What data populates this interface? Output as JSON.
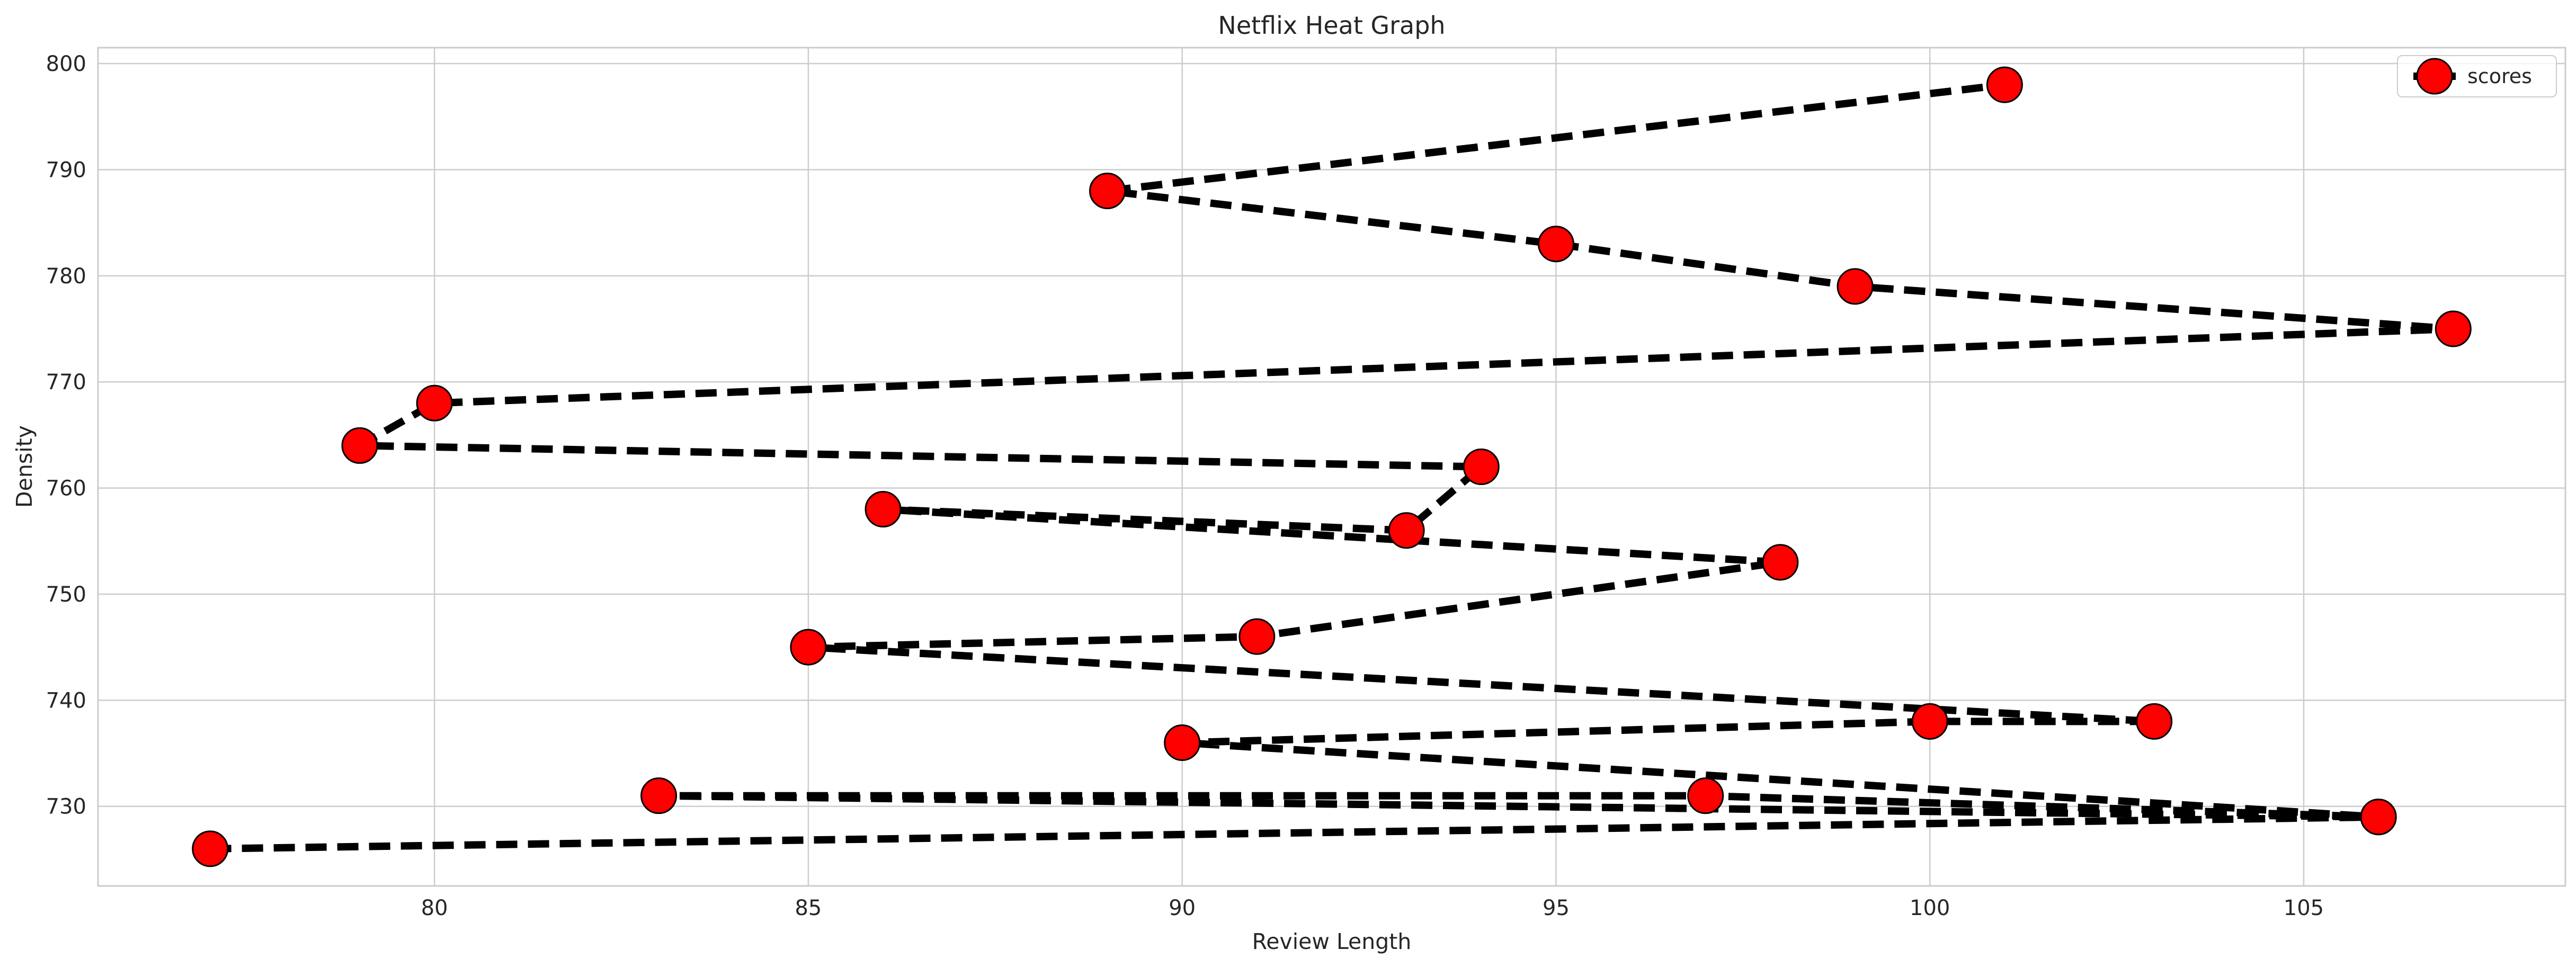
{
  "chart_data": {
    "type": "line",
    "title": "Netflix Heat Graph",
    "xlabel": "Review Length",
    "ylabel": "Density",
    "xlim": [
      75.5,
      108.5
    ],
    "ylim": [
      722.5,
      801.5
    ],
    "xticks": [
      80,
      85,
      90,
      95,
      100,
      105
    ],
    "yticks": [
      730,
      740,
      750,
      760,
      770,
      780,
      790,
      800
    ],
    "grid": true,
    "legend_position": "top-right",
    "series": [
      {
        "name": "scores",
        "line_style": "dashed",
        "line_color": "#000000",
        "marker": "circle",
        "marker_color": "#ff0000",
        "marker_edge_color": "#000000",
        "x": [
          77,
          106,
          83,
          97,
          106,
          90,
          100,
          103,
          85,
          91,
          98,
          86,
          93,
          94,
          79,
          80,
          107,
          99,
          95,
          89,
          101
        ],
        "y": [
          726,
          729,
          731,
          731,
          729,
          736,
          738,
          738,
          745,
          746,
          753,
          758,
          756,
          762,
          764,
          768,
          775,
          779,
          783,
          788,
          798
        ]
      }
    ]
  }
}
